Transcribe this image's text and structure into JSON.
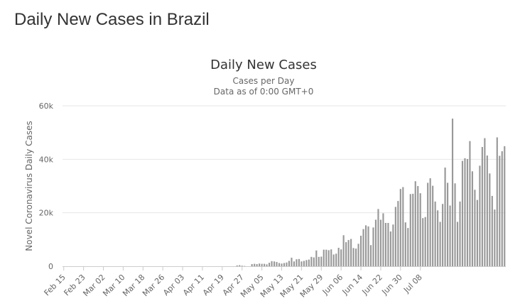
{
  "page": {
    "heading": "Daily New Cases in Brazil"
  },
  "chart_data": {
    "type": "bar",
    "title": "Daily New Cases",
    "subtitle": "Cases per Day",
    "subtitle2": "Data as of 0:00 GMT+0",
    "xlabel": "",
    "ylabel": "Novel Coronavirus Daily Cases",
    "ylim": [
      0,
      60000
    ],
    "yticks": [
      0,
      20000,
      40000,
      60000
    ],
    "ytick_labels": [
      "0",
      "20k",
      "40k",
      "60k"
    ],
    "xtick_labels": [
      "Feb 15",
      "Feb 23",
      "Mar 02",
      "Mar 10",
      "Mar 18",
      "Mar 26",
      "Apr 03",
      "Apr 11",
      "Apr 19",
      "Apr 27",
      "May 05",
      "May 13",
      "May 21",
      "May 29",
      "Jun 06",
      "Jun 14",
      "Jun 22",
      "Jun 30",
      "Jul 08"
    ],
    "grid": true,
    "legend": "none",
    "colors": {
      "bar": "#999999",
      "grid": "#e6e6e6",
      "axis": "#cccccc"
    },
    "values": [
      0,
      0,
      0,
      0,
      0,
      0,
      0,
      0,
      0,
      0,
      0,
      0,
      0,
      0,
      0,
      0,
      0,
      0,
      0,
      0,
      0,
      0,
      0,
      0,
      0,
      0,
      0,
      0,
      0,
      0,
      0,
      0,
      0,
      0,
      0,
      0,
      0,
      0,
      0,
      0,
      0,
      0,
      0,
      0,
      0,
      0,
      0,
      0,
      0,
      0,
      0,
      0,
      0,
      0,
      0,
      0,
      0,
      0,
      0,
      0,
      0,
      0,
      0,
      0,
      0,
      0,
      0,
      0,
      0,
      0,
      300,
      400,
      200,
      100,
      0,
      0,
      800,
      900,
      800,
      1000,
      900,
      900,
      700,
      1300,
      1900,
      1800,
      1600,
      1200,
      1000,
      1200,
      1400,
      2000,
      3200,
      1800,
      2600,
      2700,
      1800,
      2000,
      2300,
      2500,
      3500,
      3300,
      5900,
      3500,
      3600,
      6200,
      6200,
      6000,
      6300,
      4400,
      4700,
      6900,
      6300,
      11600,
      9000,
      9800,
      10200,
      6800,
      6600,
      8400,
      11400,
      13900,
      15300,
      14900,
      7900,
      14500,
      17400,
      21400,
      17400,
      19800,
      16200,
      16200,
      13000,
      15600,
      22200,
      24400,
      28900,
      29600,
      16400,
      14300,
      27000,
      27100,
      31800,
      30000,
      27300,
      18000,
      18400,
      31200,
      32900,
      30100,
      24200,
      20900,
      16600,
      23300,
      36900,
      31200,
      22700,
      55200,
      31000,
      16600,
      24200,
      39400,
      40400,
      40100,
      46800,
      35500,
      28600,
      24800,
      37600,
      44600,
      47900,
      41400,
      34700,
      26300,
      21200,
      48200,
      41300,
      43000,
      44900
    ]
  }
}
